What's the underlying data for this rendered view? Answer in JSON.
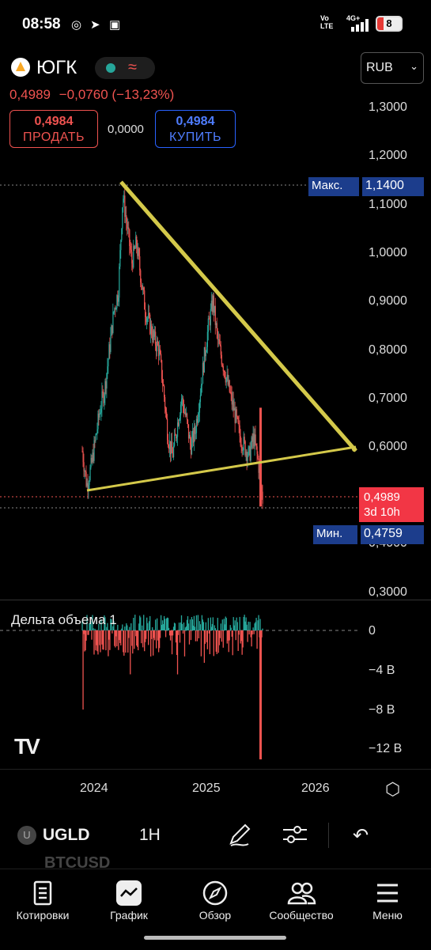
{
  "status_bar": {
    "time": "08:58",
    "network_label": "Vo LTE",
    "signal_label": "4G+",
    "battery_level": "8"
  },
  "header": {
    "symbol_name": "ЮГК",
    "last_price": "0,4989",
    "change": "−0,0760",
    "change_percent": "(−13,23%)",
    "sell_price": "0,4984",
    "sell_label": "ПРОДАТЬ",
    "spread": "0,0000",
    "buy_price": "0,4984",
    "buy_label": "КУПИТЬ",
    "currency": "RUB"
  },
  "price_axis": {
    "labels": [
      "1,3000",
      "1,2000",
      "1,1000",
      "1,0000",
      "0,9000",
      "0,8000",
      "0,7000",
      "0,6000",
      "0,4000",
      "0,3000"
    ],
    "max_label": "Макс.",
    "max_value": "1,1400",
    "min_label": "Мин.",
    "min_value": "0,4759",
    "current_price": "0,4989",
    "countdown": "3d 10h"
  },
  "volume_pane": {
    "title": "Дельта объема 1",
    "axis_labels": [
      "0",
      "−4 B",
      "−8 B",
      "−12 B"
    ]
  },
  "time_axis": {
    "labels": [
      "2024",
      "2025",
      "2026"
    ]
  },
  "toolbar": {
    "symbol": "UGLD",
    "symbol_badge": "U",
    "interval": "1H",
    "ghost_symbol": "BTCUSD"
  },
  "bottom_nav": {
    "items": [
      {
        "label": "Котировки",
        "icon": "watchlist-icon"
      },
      {
        "label": "График",
        "icon": "chart-icon"
      },
      {
        "label": "Обзор",
        "icon": "compass-icon"
      },
      {
        "label": "Сообщество",
        "icon": "community-icon"
      },
      {
        "label": "Меню",
        "icon": "menu-icon"
      }
    ]
  },
  "colors": {
    "up": "#26a69a",
    "down": "#ef5350",
    "trendline": "#d4c94a",
    "accent_blue": "#2962ff"
  },
  "chart_data": {
    "type": "candlestick",
    "price_axis_range": [
      0.3,
      1.3
    ],
    "max_value": 1.14,
    "min_value": 0.4759,
    "last_price": 0.4989,
    "time_ticks": [
      "2024",
      "2025",
      "2026"
    ],
    "close_path": [
      0.59,
      0.52,
      0.56,
      0.62,
      0.68,
      0.72,
      0.8,
      0.88,
      0.92,
      1.12,
      1.05,
      0.98,
      1.02,
      0.95,
      0.88,
      0.85,
      0.82,
      0.8,
      0.72,
      0.62,
      0.58,
      0.64,
      0.7,
      0.66,
      0.6,
      0.63,
      0.7,
      0.78,
      0.85,
      0.9,
      0.82,
      0.78,
      0.74,
      0.7,
      0.66,
      0.62,
      0.6,
      0.58,
      0.62,
      0.57,
      0.49
    ],
    "trendlines": [
      {
        "from": [
          0.05,
          1.14
        ],
        "to": [
          0.95,
          0.6
        ]
      },
      {
        "from": [
          0.0,
          0.52
        ],
        "to": [
          0.95,
          0.6
        ]
      }
    ],
    "volume_delta_axis": [
      "0",
      "−4 B",
      "−8 B",
      "−12 B"
    ]
  }
}
